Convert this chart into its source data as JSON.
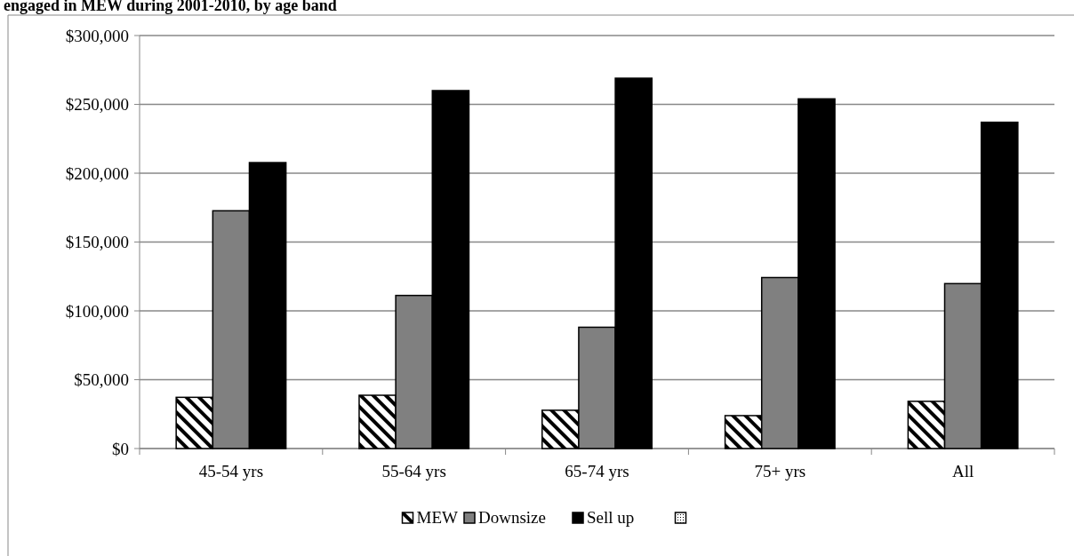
{
  "chart_data": {
    "type": "bar",
    "title": "engaged in MEW during 2001-2010, by age band",
    "categories": [
      "45-54 yrs",
      "55-64 yrs",
      "65-74 yrs",
      "75+ yrs",
      "All"
    ],
    "series": [
      {
        "name": "MEW",
        "color": "#000000",
        "values": [
          37200,
          38700,
          27800,
          23900,
          34300
        ]
      },
      {
        "name": "Downsize",
        "color": "#808080",
        "values": [
          172700,
          111200,
          88100,
          124200,
          119800
        ]
      },
      {
        "name": "Sell up",
        "color": "#000000",
        "values": [
          207700,
          260000,
          269000,
          254000,
          237000
        ]
      }
    ],
    "ylim": [
      0,
      300000
    ],
    "yticks": [
      {
        "value": 0,
        "label": "$0"
      },
      {
        "value": 50000,
        "label": "$50,000"
      },
      {
        "value": 100000,
        "label": "$100,000"
      },
      {
        "value": 150000,
        "label": "$150,000"
      },
      {
        "value": 200000,
        "label": "$200,000"
      },
      {
        "value": 250000,
        "label": "$250,000"
      },
      {
        "value": 300000,
        "label": "$300,000"
      }
    ],
    "grid": "y",
    "legend": "bottom"
  }
}
